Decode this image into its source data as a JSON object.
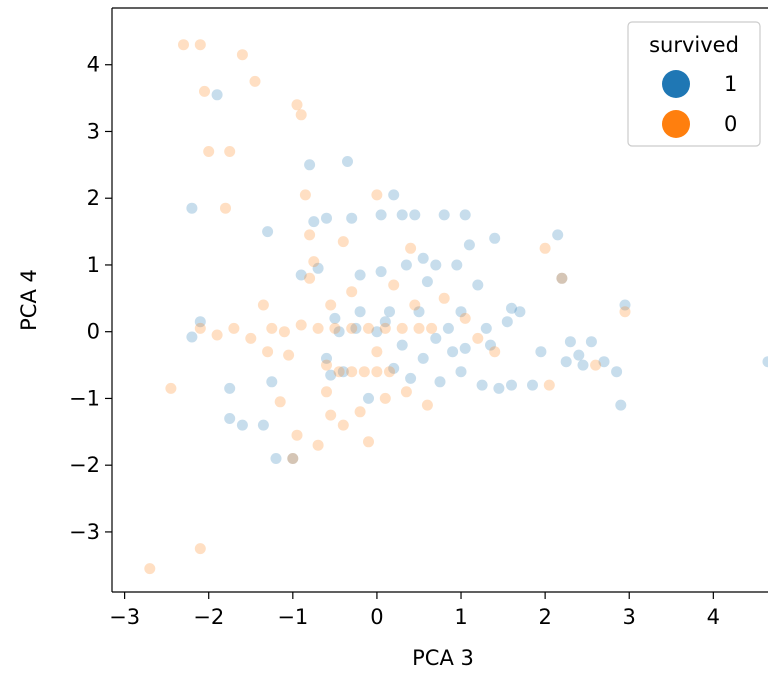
{
  "chart_data": {
    "type": "scatter",
    "xlabel": "PCA 3",
    "ylabel": "PCA 4",
    "xlim": [
      -3.15,
      4.65
    ],
    "ylim": [
      -3.9,
      4.85
    ],
    "x_ticks": [
      -3,
      -2,
      -1,
      0,
      1,
      2,
      3,
      4
    ],
    "y_ticks": [
      -3,
      -2,
      -1,
      0,
      1,
      2,
      3,
      4
    ],
    "x_tick_labels": [
      "−3",
      "−2",
      "−1",
      "0",
      "1",
      "2",
      "3",
      "4"
    ],
    "y_tick_labels": [
      "−3",
      "−2",
      "−1",
      "0",
      "1",
      "2",
      "3",
      "4"
    ],
    "grid": false,
    "legend": {
      "title": "survived",
      "position": "top-right"
    },
    "series": [
      {
        "name": "1",
        "color": "#1f77b4",
        "points": [
          [
            -2.2,
            1.85
          ],
          [
            -2.1,
            0.15
          ],
          [
            -2.2,
            -0.08
          ],
          [
            -1.9,
            3.55
          ],
          [
            -1.75,
            -0.85
          ],
          [
            -1.75,
            -1.3
          ],
          [
            -1.6,
            -1.4
          ],
          [
            -1.3,
            1.5
          ],
          [
            -1.35,
            -1.4
          ],
          [
            -1.25,
            -0.75
          ],
          [
            -1.2,
            -1.9
          ],
          [
            -1.0,
            -1.9
          ],
          [
            -0.9,
            0.85
          ],
          [
            -0.8,
            2.5
          ],
          [
            -0.75,
            1.65
          ],
          [
            -0.7,
            0.95
          ],
          [
            -0.6,
            -0.4
          ],
          [
            -0.55,
            -0.65
          ],
          [
            -0.45,
            0.0
          ],
          [
            -0.4,
            -0.6
          ],
          [
            -0.35,
            2.55
          ],
          [
            -0.3,
            1.7
          ],
          [
            -0.2,
            0.85
          ],
          [
            -0.2,
            0.3
          ],
          [
            -0.1,
            -1.0
          ],
          [
            0.0,
            0.0
          ],
          [
            0.05,
            1.75
          ],
          [
            0.05,
            0.9
          ],
          [
            0.15,
            0.3
          ],
          [
            0.2,
            2.05
          ],
          [
            0.3,
            -0.2
          ],
          [
            0.35,
            1.0
          ],
          [
            0.4,
            -0.7
          ],
          [
            0.45,
            1.75
          ],
          [
            0.5,
            0.3
          ],
          [
            0.55,
            1.1
          ],
          [
            0.55,
            -0.4
          ],
          [
            0.6,
            0.75
          ],
          [
            0.7,
            1.0
          ],
          [
            0.75,
            -0.75
          ],
          [
            0.8,
            1.75
          ],
          [
            0.85,
            0.05
          ],
          [
            0.9,
            -0.3
          ],
          [
            0.95,
            1.0
          ],
          [
            1.0,
            0.3
          ],
          [
            1.05,
            -0.25
          ],
          [
            1.05,
            1.75
          ],
          [
            1.1,
            1.3
          ],
          [
            1.2,
            0.7
          ],
          [
            1.25,
            -0.8
          ],
          [
            1.3,
            0.05
          ],
          [
            1.35,
            -0.2
          ],
          [
            1.4,
            1.4
          ],
          [
            1.45,
            -0.85
          ],
          [
            1.55,
            0.15
          ],
          [
            1.6,
            0.35
          ],
          [
            1.6,
            -0.8
          ],
          [
            1.7,
            0.3
          ],
          [
            1.85,
            -0.8
          ],
          [
            1.95,
            -0.3
          ],
          [
            2.15,
            1.45
          ],
          [
            2.2,
            0.8
          ],
          [
            2.25,
            -0.45
          ],
          [
            2.3,
            -0.15
          ],
          [
            2.4,
            -0.35
          ],
          [
            2.45,
            -0.5
          ],
          [
            2.55,
            -0.15
          ],
          [
            2.7,
            -0.45
          ],
          [
            2.85,
            -0.6
          ],
          [
            2.9,
            -1.1
          ],
          [
            2.95,
            0.4
          ],
          [
            4.65,
            -0.45
          ],
          [
            -0.5,
            0.2
          ],
          [
            0.2,
            -0.55
          ],
          [
            0.1,
            0.15
          ],
          [
            -0.25,
            0.05
          ],
          [
            0.7,
            -0.1
          ],
          [
            -0.6,
            1.7
          ],
          [
            0.3,
            1.75
          ],
          [
            1.0,
            -0.6
          ]
        ]
      },
      {
        "name": "0",
        "color": "#ff7f0e",
        "points": [
          [
            -2.7,
            -3.55
          ],
          [
            -2.1,
            4.3
          ],
          [
            -2.3,
            4.3
          ],
          [
            -2.05,
            3.6
          ],
          [
            -1.6,
            4.15
          ],
          [
            -1.45,
            3.75
          ],
          [
            -2.0,
            2.7
          ],
          [
            -1.75,
            2.7
          ],
          [
            -1.8,
            1.85
          ],
          [
            -0.95,
            3.4
          ],
          [
            -0.9,
            3.25
          ],
          [
            -0.85,
            2.05
          ],
          [
            -2.1,
            -3.25
          ],
          [
            -2.45,
            -0.85
          ],
          [
            -1.15,
            -1.05
          ],
          [
            -0.8,
            1.45
          ],
          [
            -0.75,
            1.05
          ],
          [
            -0.55,
            -1.25
          ],
          [
            -0.6,
            -0.5
          ],
          [
            -1.25,
            0.05
          ],
          [
            -1.05,
            -0.35
          ],
          [
            -0.95,
            -1.55
          ],
          [
            -0.4,
            1.35
          ],
          [
            -0.1,
            -1.65
          ],
          [
            0.0,
            2.05
          ],
          [
            0.4,
            1.25
          ],
          [
            -2.1,
            0.05
          ],
          [
            -1.9,
            -0.05
          ],
          [
            -1.7,
            0.05
          ],
          [
            -1.5,
            -0.1
          ],
          [
            -1.3,
            -0.3
          ],
          [
            -1.1,
            0.0
          ],
          [
            -0.9,
            0.1
          ],
          [
            -0.7,
            0.05
          ],
          [
            -0.5,
            0.05
          ],
          [
            -0.3,
            0.05
          ],
          [
            -0.1,
            0.05
          ],
          [
            0.1,
            0.05
          ],
          [
            0.3,
            0.05
          ],
          [
            0.5,
            0.05
          ],
          [
            0.65,
            0.05
          ],
          [
            -0.45,
            -0.6
          ],
          [
            -0.3,
            -0.6
          ],
          [
            -0.15,
            -0.6
          ],
          [
            0.0,
            -0.6
          ],
          [
            0.15,
            -0.6
          ],
          [
            -1.0,
            -1.9
          ],
          [
            -0.7,
            -1.7
          ],
          [
            -0.4,
            -1.4
          ],
          [
            -0.2,
            -1.2
          ],
          [
            0.1,
            -1.0
          ],
          [
            0.35,
            -0.9
          ],
          [
            0.6,
            -1.1
          ],
          [
            0.8,
            0.5
          ],
          [
            1.05,
            0.2
          ],
          [
            1.2,
            -0.1
          ],
          [
            1.4,
            -0.3
          ],
          [
            2.0,
            1.25
          ],
          [
            2.2,
            0.8
          ],
          [
            2.05,
            -0.8
          ],
          [
            2.6,
            -0.5
          ],
          [
            2.95,
            0.3
          ],
          [
            -0.8,
            0.8
          ],
          [
            -0.3,
            0.6
          ],
          [
            0.2,
            0.7
          ],
          [
            -0.6,
            -0.9
          ],
          [
            0.0,
            -0.3
          ],
          [
            -1.35,
            0.4
          ],
          [
            -0.55,
            0.4
          ],
          [
            0.45,
            0.4
          ]
        ]
      }
    ]
  }
}
